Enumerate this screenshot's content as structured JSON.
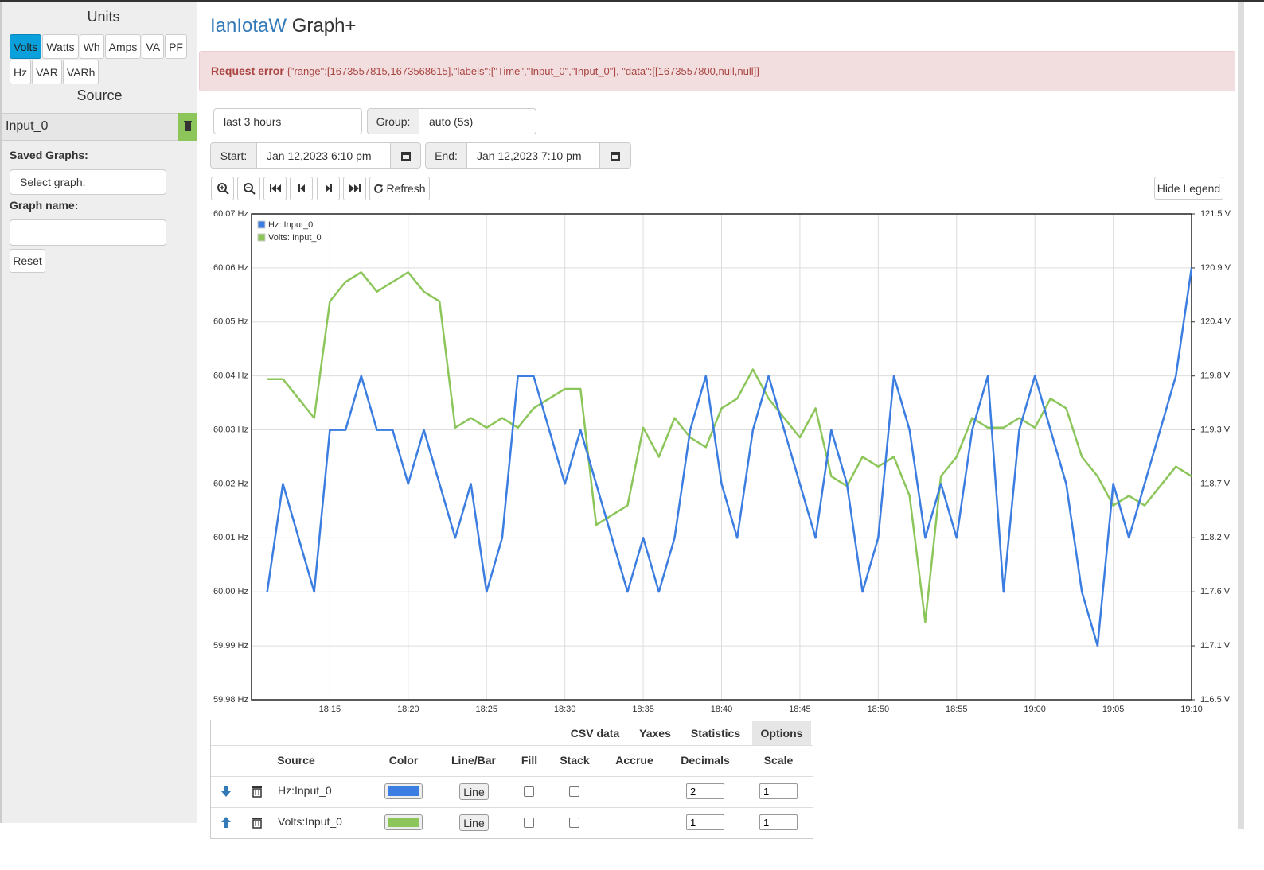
{
  "ui": {
    "units_title": "Units",
    "units": [
      "Volts",
      "Watts",
      "Wh",
      "Amps",
      "VA",
      "PF",
      "Hz",
      "VAR",
      "VARh"
    ],
    "source_title": "Source",
    "source": "Input_0",
    "saved_graphs": "Saved Graphs:",
    "select_graph": "Select graph:",
    "graph_name": "Graph name:",
    "reset": "Reset",
    "brand": "IanIotaW",
    "app": "Graph+",
    "error_label": "Request error",
    "error_text": "{\"range\":[1673557815,1673568615],\"labels\":[\"Time\",\"Input_0\",\"Input_0\"], \"data\":[[1673557800,null,null]]",
    "range": "last 3 hours",
    "group_label": "Group:",
    "group": "auto (5s)",
    "start_label": "Start:",
    "start": "Jan 12,2023 6:10 pm",
    "end_label": "End:",
    "end": "Jan 12,2023 7:10 pm",
    "refresh": "Refresh",
    "hide_legend": "Hide Legend",
    "tabs": [
      "CSV data",
      "Yaxes",
      "Statistics",
      "Options"
    ],
    "columns": [
      "Source",
      "Color",
      "Line/Bar",
      "Fill",
      "Stack",
      "Accrue",
      "Decimals",
      "Scale"
    ],
    "rows": [
      {
        "source": "Hz:Input_0",
        "type": "Line",
        "decimals": 2,
        "scale": 1
      },
      {
        "source": "Volts:Input_0",
        "type": "Line",
        "decimals": 1,
        "scale": 1
      }
    ]
  },
  "chart_data": {
    "type": "line",
    "x": [
      "18:11",
      "18:12",
      "18:13",
      "18:14",
      "18:15",
      "18:16",
      "18:17",
      "18:18",
      "18:19",
      "18:20",
      "18:21",
      "18:22",
      "18:23",
      "18:24",
      "18:25",
      "18:26",
      "18:27",
      "18:28",
      "18:29",
      "18:30",
      "18:31",
      "18:32",
      "18:33",
      "18:34",
      "18:35",
      "18:36",
      "18:37",
      "18:38",
      "18:39",
      "18:40",
      "18:41",
      "18:42",
      "18:43",
      "18:44",
      "18:45",
      "18:46",
      "18:47",
      "18:48",
      "18:49",
      "18:50",
      "18:51",
      "18:52",
      "18:53",
      "18:54",
      "18:55",
      "18:56",
      "18:57",
      "18:58",
      "18:59",
      "19:00",
      "19:01",
      "19:02",
      "19:03",
      "19:04",
      "19:05",
      "19:06",
      "19:07",
      "19:08",
      "19:09",
      "19:10"
    ],
    "xticks": [
      "18:15",
      "18:20",
      "18:25",
      "18:30",
      "18:35",
      "18:40",
      "18:45",
      "18:50",
      "18:55",
      "19:00",
      "19:05",
      "19:10"
    ],
    "series": [
      {
        "name": "Hz: Input_0",
        "color": "#3b7de0",
        "values": [
          60.0,
          60.02,
          60.01,
          60.0,
          60.03,
          60.03,
          60.04,
          60.03,
          60.03,
          60.02,
          60.03,
          60.02,
          60.01,
          60.02,
          60.0,
          60.01,
          60.04,
          60.04,
          60.03,
          60.02,
          60.03,
          60.02,
          60.01,
          60.0,
          60.01,
          60.0,
          60.01,
          60.03,
          60.04,
          60.02,
          60.01,
          60.03,
          60.04,
          60.03,
          60.02,
          60.01,
          60.03,
          60.02,
          60.0,
          60.01,
          60.04,
          60.03,
          60.01,
          60.02,
          60.01,
          60.03,
          60.04,
          60.0,
          60.03,
          60.04,
          60.03,
          60.02,
          60.0,
          59.99,
          60.02,
          60.01,
          60.02,
          60.03,
          60.04,
          60.06
        ]
      },
      {
        "name": "Volts: Input_0",
        "color": "#8cc65a",
        "axis": "y2",
        "values": [
          119.8,
          119.8,
          119.6,
          119.4,
          120.6,
          120.8,
          120.9,
          120.7,
          120.8,
          120.9,
          120.7,
          120.6,
          119.3,
          119.4,
          119.3,
          119.4,
          119.3,
          119.5,
          119.6,
          119.7,
          119.7,
          118.3,
          118.4,
          118.5,
          119.3,
          119.0,
          119.4,
          119.2,
          119.1,
          119.5,
          119.6,
          119.9,
          119.6,
          119.4,
          119.2,
          119.5,
          118.8,
          118.7,
          119.0,
          118.9,
          119.0,
          118.6,
          117.3,
          118.8,
          119.0,
          119.4,
          119.3,
          119.3,
          119.4,
          119.3,
          119.6,
          119.5,
          119.0,
          118.8,
          118.5,
          118.6,
          118.5,
          118.7,
          118.9,
          118.8
        ]
      }
    ],
    "ylim": [
      59.98,
      60.07
    ],
    "yticks": [
      {
        "value": 59.98,
        "label": "59.98 Hz"
      },
      {
        "value": 59.99,
        "label": "59.99 Hz"
      },
      {
        "value": 60.0,
        "label": "60.00 Hz"
      },
      {
        "value": 60.01,
        "label": "60.01 Hz"
      },
      {
        "value": 60.02,
        "label": "60.02 Hz"
      },
      {
        "value": 60.03,
        "label": "60.03 Hz"
      },
      {
        "value": 60.04,
        "label": "60.04 Hz"
      },
      {
        "value": 60.05,
        "label": "60.05 Hz"
      },
      {
        "value": 60.06,
        "label": "60.06 Hz"
      },
      {
        "value": 60.07,
        "label": "60.07 Hz"
      }
    ],
    "y2lim": [
      116.5,
      121.5
    ],
    "y2ticks": [
      {
        "value": 116.5,
        "label": "116.5 V"
      },
      {
        "value": 117.056,
        "label": "117.1 V"
      },
      {
        "value": 117.611,
        "label": "117.6 V"
      },
      {
        "value": 118.167,
        "label": "118.2 V"
      },
      {
        "value": 118.722,
        "label": "118.7 V"
      },
      {
        "value": 119.278,
        "label": "119.3 V"
      },
      {
        "value": 119.833,
        "label": "119.8 V"
      },
      {
        "value": 120.389,
        "label": "120.4 V"
      },
      {
        "value": 120.944,
        "label": "120.9 V"
      },
      {
        "value": 121.5,
        "label": "121.5 V"
      }
    ],
    "grid": true,
    "legend": "top-left"
  }
}
